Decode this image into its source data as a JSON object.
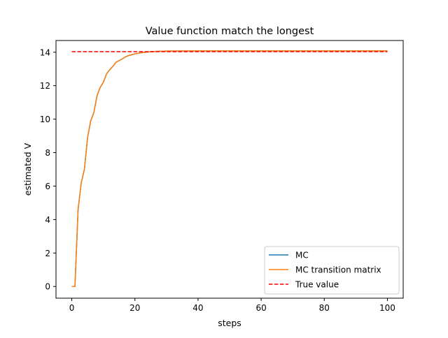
{
  "chart_data": {
    "type": "line",
    "title": "Value function match the longest",
    "xlabel": "steps",
    "ylabel": "estimated V",
    "xlim": [
      -5,
      105
    ],
    "ylim": [
      -0.7,
      14.7
    ],
    "xticks": [
      0,
      20,
      40,
      60,
      80,
      100
    ],
    "yticks": [
      0,
      2,
      4,
      6,
      8,
      10,
      12,
      14
    ],
    "grid": false,
    "legend_position": "bottom-right",
    "series": [
      {
        "name": "MC",
        "color": "#1f77b4",
        "style": "solid",
        "x": [
          0,
          1,
          2,
          3,
          4,
          5,
          6,
          7,
          8,
          9,
          10,
          11,
          12,
          13,
          14,
          15,
          16,
          17,
          18,
          19,
          20,
          22,
          24,
          26,
          28,
          30,
          40,
          50,
          60,
          70,
          80,
          90,
          100
        ],
        "y": [
          0.0,
          0.0,
          4.6,
          6.2,
          7.0,
          8.9,
          9.9,
          10.4,
          11.4,
          11.9,
          12.2,
          12.7,
          12.95,
          13.15,
          13.4,
          13.5,
          13.6,
          13.72,
          13.8,
          13.85,
          13.9,
          13.97,
          14.01,
          14.04,
          14.06,
          14.07,
          14.08,
          14.08,
          14.08,
          14.08,
          14.08,
          14.08,
          14.08
        ]
      },
      {
        "name": "MC transition matrix",
        "color": "#ff7f0e",
        "style": "solid",
        "x": [
          0,
          1,
          2,
          3,
          4,
          5,
          6,
          7,
          8,
          9,
          10,
          11,
          12,
          13,
          14,
          15,
          16,
          17,
          18,
          19,
          20,
          22,
          24,
          26,
          28,
          30,
          40,
          50,
          60,
          70,
          80,
          90,
          100
        ],
        "y": [
          0.0,
          0.0,
          4.6,
          6.2,
          7.0,
          8.9,
          9.9,
          10.4,
          11.4,
          11.9,
          12.2,
          12.7,
          12.95,
          13.15,
          13.4,
          13.5,
          13.6,
          13.72,
          13.8,
          13.85,
          13.9,
          13.97,
          14.01,
          14.04,
          14.06,
          14.07,
          14.08,
          14.08,
          14.08,
          14.08,
          14.08,
          14.08,
          14.08
        ]
      },
      {
        "name": "True value",
        "color": "#ff0000",
        "style": "dashed",
        "x": [
          0,
          100
        ],
        "y": [
          14.03,
          14.03
        ]
      }
    ]
  }
}
